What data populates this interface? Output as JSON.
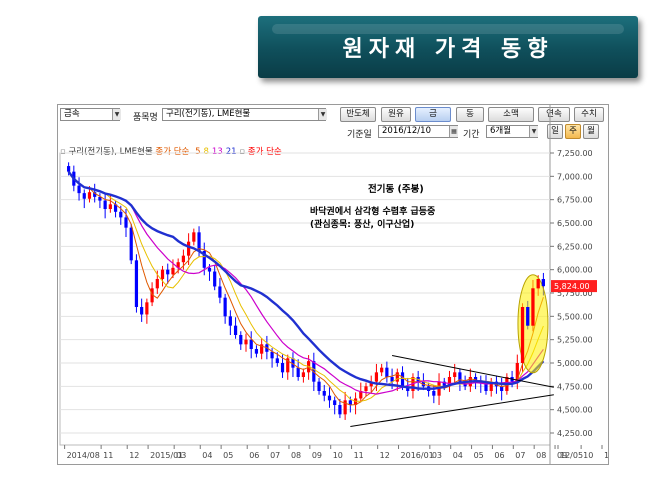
{
  "banner": {
    "title": "원자재 가격 동향"
  },
  "toolbar": {
    "market_select": "금속",
    "item_label": "품목명",
    "item_value": "구리(전기동), LME현물",
    "buttons": [
      "반도체",
      "원유",
      "금",
      "동",
      "소맥",
      "연속",
      "수치"
    ],
    "active_button": "금",
    "date_label": "기준일",
    "date_value": "2016/12/10",
    "period_label": "기간",
    "period_value": "6개월",
    "freq_buttons": [
      "일",
      "주",
      "월"
    ],
    "active_freq": "주"
  },
  "legend": {
    "series_name": "구리(전기동), LME현물",
    "ma_label": "종가 단순",
    "ma_periods": [
      "5",
      "8",
      "13",
      "21"
    ],
    "ma_colors": [
      "#e05a00",
      "#e8c000",
      "#cc00cc",
      "#2030d0"
    ],
    "close_label": "종가 단순",
    "close_color": "#ff0000"
  },
  "annotations": {
    "title": "전기동 (주봉)",
    "line1": "바닥권에서 삼각형 수렴후 급등중",
    "line2": "(관심종목: 풍산, 이구산업)"
  },
  "chart_data": {
    "type": "candlestick",
    "title": "전기동 (주봉)",
    "y_ticks": [
      "7,250.00",
      "7,000.00",
      "6,750.00",
      "6,500.00",
      "6,250.00",
      "6,000.00",
      "5,750.00",
      "5,500.00",
      "5,250.00",
      "5,000.00",
      "4,750.00",
      "4,500.00",
      "4,250.00"
    ],
    "ylim": [
      4250,
      7250
    ],
    "x_ticks": [
      "2014/08",
      "11",
      "12",
      "2015/01",
      "03",
      "04",
      "05",
      "06",
      "07",
      "08",
      "09",
      "10",
      "11",
      "12",
      "2016/01",
      "03",
      "04",
      "05",
      "06",
      "07",
      "08",
      "09",
      "10",
      "11",
      "12",
      "12/05"
    ],
    "last_price": "5,824.00",
    "closes": [
      7050,
      6900,
      6820,
      6760,
      6830,
      6780,
      6740,
      6650,
      6700,
      6620,
      6560,
      6450,
      6100,
      5600,
      5520,
      5650,
      5800,
      5900,
      6000,
      5950,
      6020,
      6080,
      6150,
      6300,
      6400,
      6200,
      6020,
      5980,
      5820,
      5700,
      5500,
      5400,
      5300,
      5200,
      5250,
      5150,
      5100,
      5200,
      5120,
      5050,
      5000,
      4900,
      5050,
      4950,
      4850,
      4900,
      5020,
      4800,
      4700,
      4650,
      4600,
      4550,
      4450,
      4600,
      4550,
      4620,
      4700,
      4750,
      4800,
      4900,
      4950,
      4850,
      4800,
      4900,
      4750,
      4700,
      4850,
      4800,
      4750,
      4700,
      4650,
      4800,
      4750,
      4850,
      4900,
      4800,
      4750,
      4850,
      4800,
      4780,
      4700,
      4800,
      4750,
      4700,
      4850,
      4800,
      5000,
      5600,
      5400,
      5800,
      5900,
      5824
    ],
    "ma5_color": "#e05a00",
    "ma8_color": "#e8c000",
    "ma13_color": "#cc00cc",
    "ma21_color": "#2030d0"
  }
}
